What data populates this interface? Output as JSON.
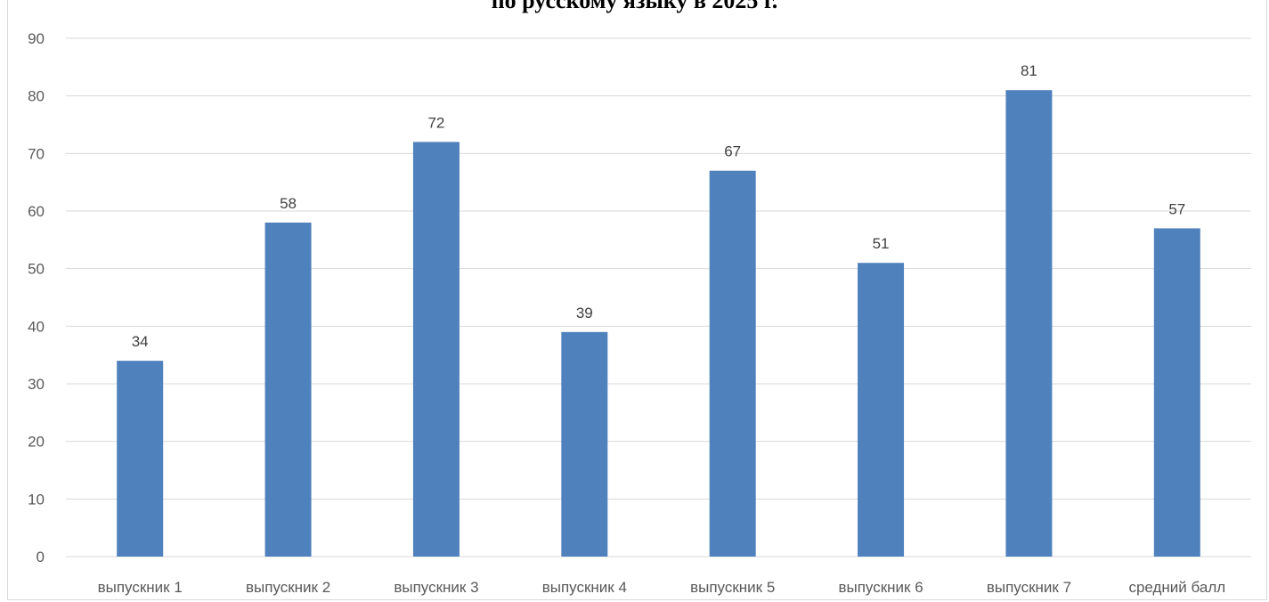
{
  "chart_data": {
    "type": "bar",
    "title": "по русскому языку в 2025 г.",
    "xlabel": "",
    "ylabel": "",
    "categories": [
      "выпускник 1",
      "выпускник 2",
      "выпускник 3",
      "выпускник 4",
      "выпускник 5",
      "выпускник 6",
      "выпускник 7",
      "средний балл"
    ],
    "values": [
      34,
      58,
      72,
      39,
      67,
      51,
      81,
      57
    ],
    "ylim": [
      0,
      90
    ],
    "yticks": [
      "0",
      "10",
      "20",
      "30",
      "40",
      "50",
      "60",
      "70",
      "80",
      "90"
    ],
    "data_labels": [
      "34",
      "58",
      "72",
      "39",
      "67",
      "51",
      "81",
      "57"
    ],
    "grid": true,
    "legend": "none",
    "colors": {
      "bar": "#4f81bd",
      "grid": "#d9d9d9",
      "axis_text": "#595959"
    }
  }
}
